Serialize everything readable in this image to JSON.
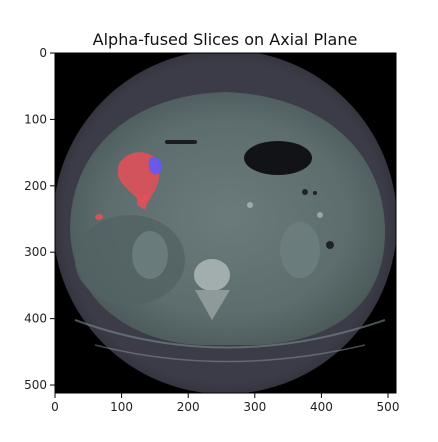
{
  "figure": {
    "title": "Alpha-fused Slices on Axial Plane"
  },
  "axes": {
    "x_ticks": [
      0,
      100,
      200,
      300,
      400,
      500
    ],
    "y_ticks": [
      0,
      100,
      200,
      300,
      400,
      500
    ],
    "x_range": [
      0,
      512
    ],
    "y_range": [
      0,
      512
    ]
  },
  "image": {
    "description_colors": {
      "background": "#000000",
      "body": "#5a6a6a",
      "overlay_primary": "#e0505a",
      "overlay_secondary": "#5a5aff"
    }
  }
}
